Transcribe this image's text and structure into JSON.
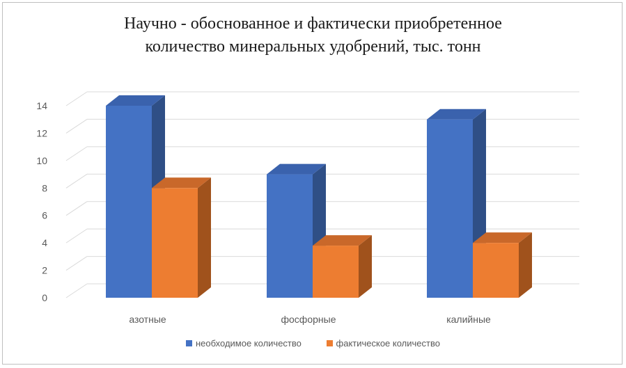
{
  "chart_data": {
    "type": "bar",
    "title_lines": [
      "Научно - обоснованное и фактически приобретенное",
      "количество минеральных удобрений, тыс. тонн"
    ],
    "categories": [
      "азотные",
      "фосфорные",
      "калийные"
    ],
    "series": [
      {
        "name": "необходимое количество",
        "values": [
          14,
          9,
          13
        ],
        "color": "#4472c4",
        "side_color": "#2f4f86",
        "top_color": "#3a62ad"
      },
      {
        "name": "фактическое количество",
        "values": [
          8,
          3.8,
          4
        ],
        "color": "#ed7d31",
        "side_color": "#a0521c",
        "top_color": "#c9682a"
      }
    ],
    "ylim": [
      0,
      14
    ],
    "yticks": [
      "0",
      "2",
      "4",
      "6",
      "8",
      "10",
      "12",
      "14"
    ],
    "grid": true,
    "legend": "bottom"
  }
}
